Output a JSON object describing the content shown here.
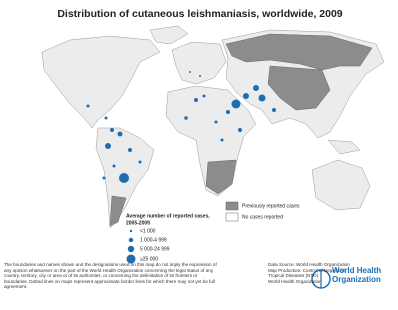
{
  "header": {
    "title": "Distribution of cutaneous leishmaniasis, worldwide, 2009"
  },
  "legend": {
    "title": "Average number of reported cases,",
    "period": "2005-2009",
    "sizes": [
      "<1 000",
      "1 000-4 999",
      "5 000-24 999",
      "≥25 000"
    ],
    "areas": [
      "Previously reported cases",
      "No cases reported"
    ]
  },
  "footer": {
    "disclaimer": "The boundaries and names shown and the designations used on this map do not imply the expression of any opinion whatsoever on the part of the World Health Organization concerning the legal status of any country, territory, city or area or of its authorities, or concerning the delimitation of its frontiers or boundaries. Dotted lines on maps represent approximate border lines for which there may not yet be full agreement.",
    "credits": [
      "Data Source: World Health Organization",
      "Map Production: Control of Neglected",
      "Tropical Diseases (NTD)",
      "World Health Organization"
    ],
    "logo": [
      "World Health",
      "Organization"
    ]
  }
}
